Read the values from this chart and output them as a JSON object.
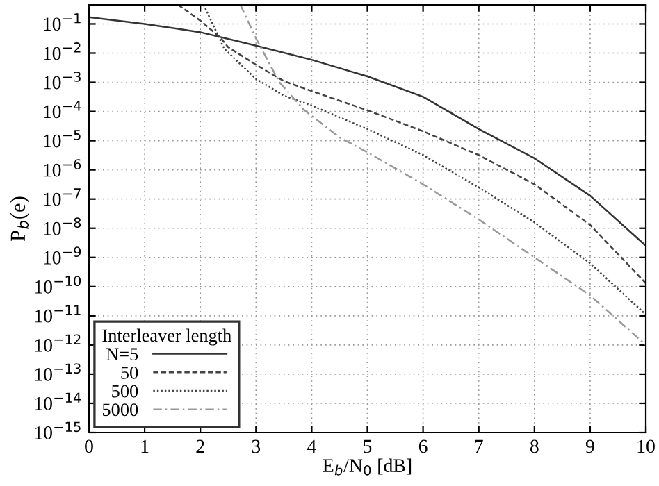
{
  "chart_data": {
    "type": "line",
    "xlabel": "E$_{b}$/N$_{0}$ [dB]",
    "ylabel": "P$_{b}$(e)",
    "legend_title": "Interleaver length",
    "legend": "bottom left",
    "log": "y",
    "grid": true,
    "xlim": [
      0,
      10
    ],
    "xticks": [
      0,
      1,
      2,
      3,
      4,
      5,
      6,
      7,
      8,
      9,
      10
    ],
    "ylim": [
      1e-15,
      0.45
    ],
    "yticks": [
      {
        "value": 1e-15,
        "label": "10$^{−15}$"
      },
      {
        "value": 1e-14,
        "label": "10$^{−14}$"
      },
      {
        "value": 1e-13,
        "label": "10$^{−13}$"
      },
      {
        "value": 1e-12,
        "label": "10$^{−12}$"
      },
      {
        "value": 1e-11,
        "label": "10$^{−11}$"
      },
      {
        "value": 1e-10,
        "label": "10$^{−10}$"
      },
      {
        "value": 1e-09,
        "label": "10$^{−9}$"
      },
      {
        "value": 1e-08,
        "label": "10$^{−8}$"
      },
      {
        "value": 1e-07,
        "label": "10$^{−7}$"
      },
      {
        "value": 1e-06,
        "label": "10$^{−6}$"
      },
      {
        "value": 1e-05,
        "label": "10$^{−5}$"
      },
      {
        "value": 0.0001,
        "label": "10$^{−4}$"
      },
      {
        "value": 0.001,
        "label": "10$^{−3}$"
      },
      {
        "value": 0.01,
        "label": "10$^{−2}$"
      },
      {
        "value": 0.1,
        "label": "10$^{−1}$"
      }
    ],
    "series": [
      {
        "name": "N=5",
        "color": "#333333",
        "line_style": "solid",
        "x": [
          0,
          1,
          2,
          3,
          4,
          5,
          6,
          7,
          8,
          9,
          10
        ],
        "values": [
          0.17,
          0.1,
          0.052,
          0.018,
          0.0059,
          0.0016,
          0.00032,
          2.5e-05,
          2.5e-06,
          1.3e-07,
          2.5e-09
        ]
      },
      {
        "name": "50",
        "color": "#444444",
        "line_style": "dashed",
        "x": [
          1.6,
          2,
          2.36,
          2.5,
          3,
          3.5,
          4,
          5,
          6,
          7,
          8,
          9,
          10
        ],
        "values": [
          0.45,
          0.13,
          0.034,
          0.016,
          0.004,
          0.0011,
          0.0005,
          0.00011,
          2.1e-05,
          3.2e-06,
          3.2e-07,
          1.3e-08,
          1.3e-10
        ]
      },
      {
        "name": "500",
        "color": "#444444",
        "line_style": "dotted",
        "x": [
          2.06,
          2.43,
          3,
          3.5,
          4,
          5,
          6,
          7,
          8,
          9,
          10
        ],
        "values": [
          0.45,
          0.014,
          0.0013,
          0.00035,
          0.00016,
          2.5e-05,
          3.2e-06,
          2.5e-07,
          1.6e-08,
          6.3e-10,
          1.1e-11
        ]
      },
      {
        "name": "5000",
        "color": "#999999",
        "line_style": "dashdot",
        "x": [
          2.72,
          3,
          3.42,
          3.87,
          4.5,
          5,
          6,
          7,
          8,
          9,
          10
        ],
        "values": [
          0.45,
          0.032,
          0.001,
          0.00011,
          1.3e-05,
          4e-06,
          3.2e-07,
          2e-08,
          1e-09,
          5e-11,
          1e-12
        ]
      }
    ]
  }
}
